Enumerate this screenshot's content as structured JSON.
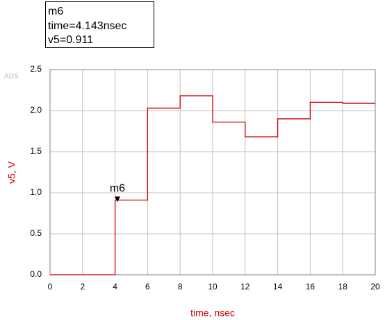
{
  "chart_data": {
    "type": "line",
    "watermark": "ADS",
    "x_label": "time, nsec",
    "y_label": "v5, V",
    "x": [
      0,
      4,
      4,
      6,
      6,
      8,
      8,
      10,
      10,
      12,
      12,
      14,
      14,
      16,
      16,
      18,
      18,
      20
    ],
    "series": [
      {
        "name": "v5",
        "color": "#cc0000",
        "values": [
          0,
          0,
          0.91,
          0.91,
          2.03,
          2.03,
          2.18,
          2.18,
          1.86,
          1.86,
          1.68,
          1.68,
          1.9,
          1.9,
          2.1,
          2.1,
          2.09,
          2.09
        ]
      }
    ],
    "xlim": [
      0,
      20
    ],
    "xticks": [
      0,
      2,
      4,
      6,
      8,
      10,
      12,
      14,
      16,
      18,
      20
    ],
    "ylim": [
      0,
      2.5
    ],
    "yticks": [
      {
        "value": 0,
        "label": "0.0"
      },
      {
        "value": 0.5,
        "label": "0.5"
      },
      {
        "value": 1,
        "label": "1.0"
      },
      {
        "value": 1.5,
        "label": "1.5"
      },
      {
        "value": 2,
        "label": "2.0"
      },
      {
        "value": 2.5,
        "label": "2.5"
      }
    ],
    "grid": true,
    "marker": {
      "name": "m6",
      "x": 4.143,
      "y": 0.911,
      "lines": [
        "time=4.143nsec",
        "v5=0.911"
      ]
    }
  }
}
